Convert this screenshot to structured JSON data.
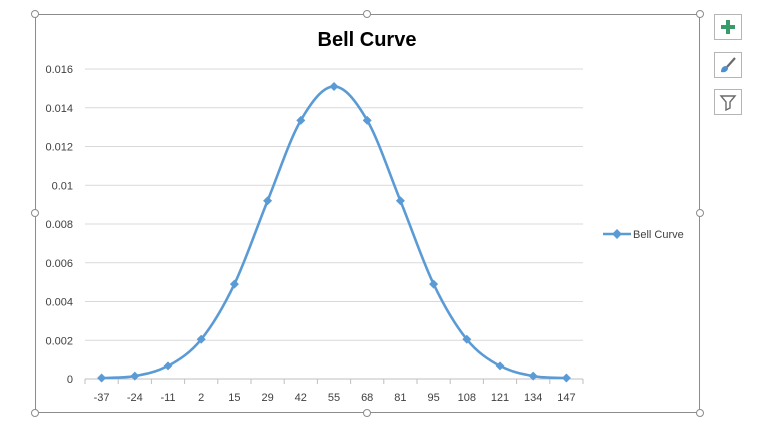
{
  "chart_data": {
    "type": "line",
    "title": "Bell Curve",
    "x": [
      -37,
      -24,
      -11,
      2,
      15,
      29,
      42,
      55,
      68,
      81,
      95,
      108,
      121,
      134,
      147
    ],
    "series": [
      {
        "name": "Bell Curve",
        "values": [
          5e-05,
          0.00015,
          0.00068,
          0.00205,
          0.0049,
          0.0092,
          0.01335,
          0.0151,
          0.01335,
          0.0092,
          0.0049,
          0.00205,
          0.00068,
          0.00015,
          5e-05
        ],
        "color": "#5b9bd5",
        "marker": "diamond",
        "smooth": true
      }
    ],
    "yticks": [
      "0",
      "0.002",
      "0.004",
      "0.006",
      "0.008",
      "0.01",
      "0.012",
      "0.014",
      "0.016"
    ],
    "ylim": [
      0,
      0.016
    ],
    "grid": true,
    "legend": "right"
  },
  "side_buttons": [
    {
      "name": "chart-elements-button",
      "icon": "plus-icon"
    },
    {
      "name": "chart-styles-button",
      "icon": "paintbrush-icon"
    },
    {
      "name": "chart-filters-button",
      "icon": "filter-icon"
    }
  ],
  "colors": {
    "accent": "#5b9bd5",
    "plus": "#3a9b6a",
    "grid": "#d9d9d9",
    "frame": "#8c8c8c"
  }
}
